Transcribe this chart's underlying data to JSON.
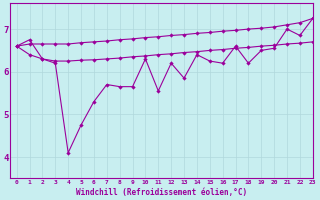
{
  "xlabel": "Windchill (Refroidissement éolien,°C)",
  "xlim": [
    -0.5,
    23
  ],
  "ylim": [
    3.5,
    7.6
  ],
  "yticks": [
    4,
    5,
    6,
    7
  ],
  "xticks": [
    0,
    1,
    2,
    3,
    4,
    5,
    6,
    7,
    8,
    9,
    10,
    11,
    12,
    13,
    14,
    15,
    16,
    17,
    18,
    19,
    20,
    21,
    22,
    23
  ],
  "background_color": "#c8eef0",
  "line_color": "#9b009b",
  "grid_color": "#b0d8dc",
  "series_jagged": [
    6.6,
    6.75,
    6.3,
    6.2,
    4.1,
    4.75,
    5.3,
    5.7,
    5.65,
    5.65,
    6.3,
    5.55,
    6.2,
    5.85,
    6.4,
    6.25,
    6.2,
    6.6,
    6.2,
    6.5,
    6.55,
    7.0,
    6.85,
    7.25
  ],
  "series_upper": [
    6.6,
    6.65,
    6.65,
    6.65,
    6.65,
    6.68,
    6.7,
    6.72,
    6.75,
    6.77,
    6.8,
    6.82,
    6.85,
    6.87,
    6.9,
    6.92,
    6.95,
    6.97,
    7.0,
    7.02,
    7.05,
    7.1,
    7.15,
    7.25
  ],
  "series_lower": [
    6.6,
    6.4,
    6.3,
    6.25,
    6.25,
    6.27,
    6.28,
    6.3,
    6.32,
    6.35,
    6.37,
    6.4,
    6.42,
    6.45,
    6.47,
    6.5,
    6.52,
    6.55,
    6.57,
    6.6,
    6.62,
    6.65,
    6.67,
    6.7
  ]
}
